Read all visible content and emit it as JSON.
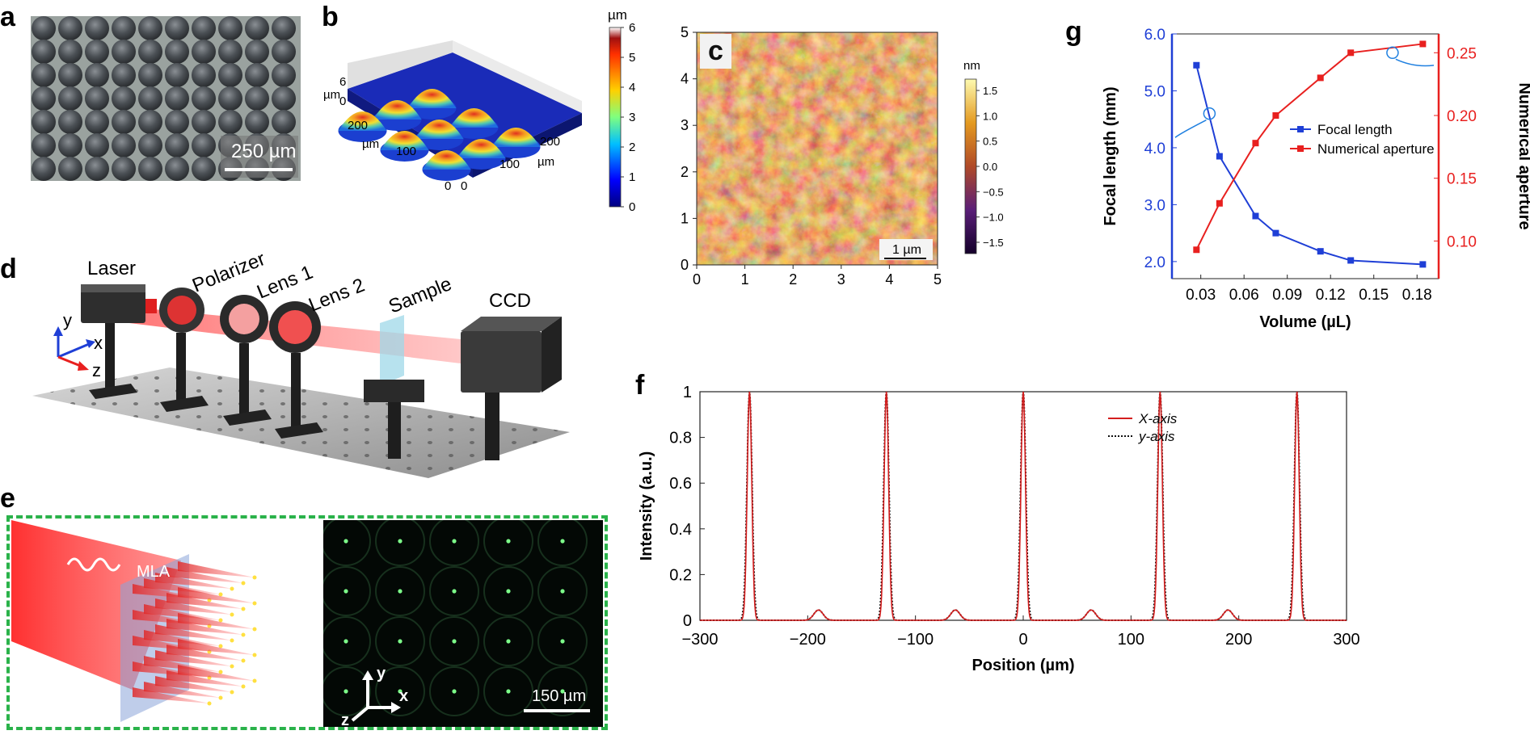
{
  "labels": {
    "a": "a",
    "b": "b",
    "c": "c",
    "d": "d",
    "e": "e",
    "f": "f",
    "g": "g"
  },
  "panel_a": {
    "scale_bar": "250 µm"
  },
  "panel_b": {
    "unit_top": "µm",
    "z_axis_label": "µm",
    "z_ticks": [
      "6",
      "0"
    ],
    "x_ticks": [
      "200",
      "100",
      "0"
    ],
    "x_label": "µm",
    "y_ticks": [
      "200",
      "100",
      "0"
    ],
    "y_label": "µm",
    "colorbar_ticks": [
      "6",
      "5",
      "4",
      "3",
      "2",
      "1",
      "0"
    ]
  },
  "panel_c": {
    "unit": "nm",
    "colorbar_ticks": [
      "1.5",
      "1.0",
      "0.5",
      "0.0",
      "−0.5",
      "−1.0",
      "−1.5"
    ],
    "x_ticks": [
      "0",
      "1",
      "2",
      "3",
      "4",
      "5"
    ],
    "y_ticks": [
      "0",
      "1",
      "2",
      "3",
      "4",
      "5"
    ],
    "scale_bar": "1 µm"
  },
  "panel_d": {
    "components": [
      "Laser",
      "Polarizer",
      "Lens 1",
      "Lens 2",
      "Sample",
      "CCD"
    ],
    "axes": {
      "y": "y",
      "x": "x",
      "z": "z"
    }
  },
  "panel_e": {
    "mla_label": "MLA",
    "axes": {
      "y": "y",
      "x": "x",
      "z": "z"
    },
    "scale_bar": "150 µm"
  },
  "colors": {
    "red": "#e8201f",
    "blue": "#1f3fd6",
    "dark_red": "#c8191b"
  },
  "chart_data": [
    {
      "id": "panel-g",
      "type": "line",
      "xlabel": "Volume (µL)",
      "ylabel_left": "Focal length (mm)",
      "ylabel_right": "Numerical aperture",
      "xlim": [
        0.01,
        0.195
      ],
      "ylim_left": [
        1.7,
        6.0
      ],
      "ylim_right": [
        0.07,
        0.265
      ],
      "x_ticks": [
        0.03,
        0.06,
        0.09,
        0.12,
        0.15,
        0.18
      ],
      "x_tick_labels": [
        "0.03",
        "0.06",
        "0.09",
        "0.12",
        "0.15",
        "0.18"
      ],
      "y_left_ticks": [
        2.0,
        3.0,
        4.0,
        5.0,
        6.0
      ],
      "y_left_tick_labels": [
        "2.0",
        "3.0",
        "4.0",
        "5.0",
        "6.0"
      ],
      "y_right_ticks": [
        0.1,
        0.15,
        0.2,
        0.25
      ],
      "y_right_tick_labels": [
        "0.10",
        "0.15",
        "0.20",
        "0.25"
      ],
      "legend": [
        "Focal length",
        "Numerical aperture"
      ],
      "series": [
        {
          "name": "Focal length",
          "axis": "left",
          "color": "#1f3fd6",
          "x": [
            0.027,
            0.043,
            0.068,
            0.082,
            0.113,
            0.134,
            0.184
          ],
          "y": [
            5.45,
            3.85,
            2.8,
            2.5,
            2.18,
            2.02,
            1.95
          ]
        },
        {
          "name": "Numerical aperture",
          "axis": "right",
          "color": "#e8201f",
          "x": [
            0.027,
            0.043,
            0.068,
            0.082,
            0.113,
            0.134,
            0.184
          ],
          "y": [
            0.093,
            0.13,
            0.178,
            0.2,
            0.23,
            0.25,
            0.257
          ]
        }
      ]
    },
    {
      "id": "panel-f",
      "type": "line",
      "xlabel": "Position (µm)",
      "ylabel": "Intensity (a.u.)",
      "xlim": [
        -300,
        300
      ],
      "ylim": [
        0,
        1
      ],
      "x_ticks": [
        -300,
        -200,
        -100,
        0,
        100,
        200,
        300
      ],
      "x_tick_labels": [
        "−300",
        "−200",
        "−100",
        "0",
        "100",
        "200",
        "300"
      ],
      "y_ticks": [
        0,
        0.2,
        0.4,
        0.6,
        0.8,
        1
      ],
      "y_tick_labels": [
        "0",
        "0.2",
        "0.4",
        "0.6",
        "0.8",
        "1"
      ],
      "legend": [
        "X-axis",
        "y-axis"
      ],
      "peak_positions": [
        -254,
        -127,
        0,
        127,
        254
      ],
      "side_lobe_positions": [
        -190,
        -63,
        63,
        190
      ],
      "side_lobe_height": 0.045,
      "series": [
        {
          "name": "X-axis",
          "color": "#d41e1e",
          "style": "solid"
        },
        {
          "name": "y-axis",
          "color": "#111111",
          "style": "dotted"
        }
      ]
    }
  ]
}
